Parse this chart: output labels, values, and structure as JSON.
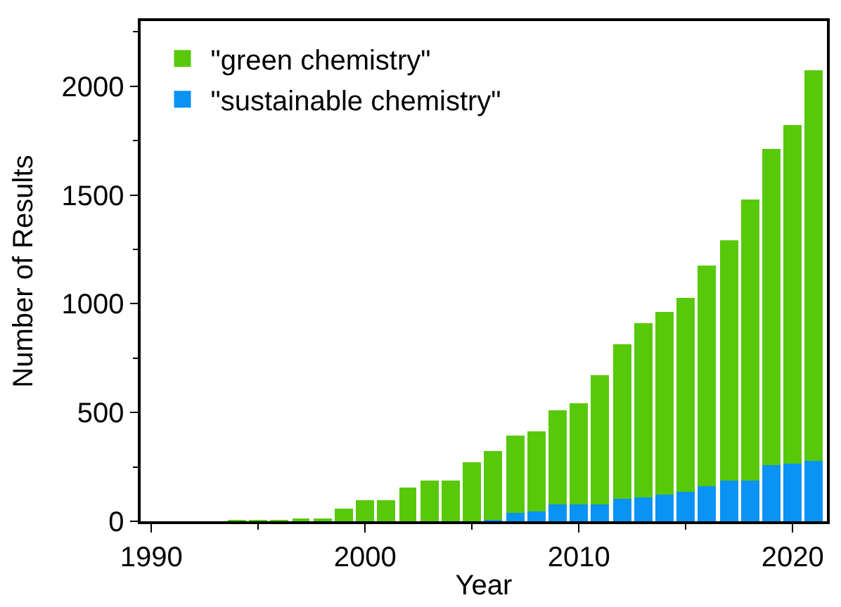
{
  "chart_data": {
    "type": "bar",
    "stacked": true,
    "xlabel": "Year",
    "ylabel": "Number of Results",
    "x": [
      1994,
      1995,
      1996,
      1997,
      1998,
      1999,
      2000,
      2001,
      2002,
      2003,
      2004,
      2005,
      2006,
      2007,
      2008,
      2009,
      2010,
      2011,
      2012,
      2013,
      2014,
      2015,
      2016,
      2017,
      2018,
      2019,
      2020,
      2021
    ],
    "series": [
      {
        "name": "\"sustainable chemistry\"",
        "color": "#0a93f5",
        "values": [
          null,
          null,
          null,
          null,
          null,
          null,
          null,
          null,
          null,
          null,
          null,
          null,
          5,
          40,
          45,
          75,
          75,
          80,
          105,
          110,
          120,
          135,
          160,
          185,
          190,
          260,
          265,
          275
        ]
      },
      {
        "name": "\"green chemistry\"",
        "color": "#58c90a",
        "values": [
          1,
          2,
          5,
          8,
          15,
          60,
          95,
          95,
          155,
          185,
          190,
          270,
          315,
          355,
          370,
          435,
          465,
          590,
          710,
          800,
          840,
          895,
          1015,
          1110,
          1290,
          1450,
          1560,
          1800
        ]
      }
    ],
    "xlim": [
      1989.5,
      2021.6
    ],
    "xticks": [
      1990,
      2000,
      2010,
      2020
    ],
    "ylim": [
      0,
      2300
    ],
    "yticks": [
      0,
      500,
      1000,
      1500,
      2000
    ],
    "legend": "top left"
  }
}
